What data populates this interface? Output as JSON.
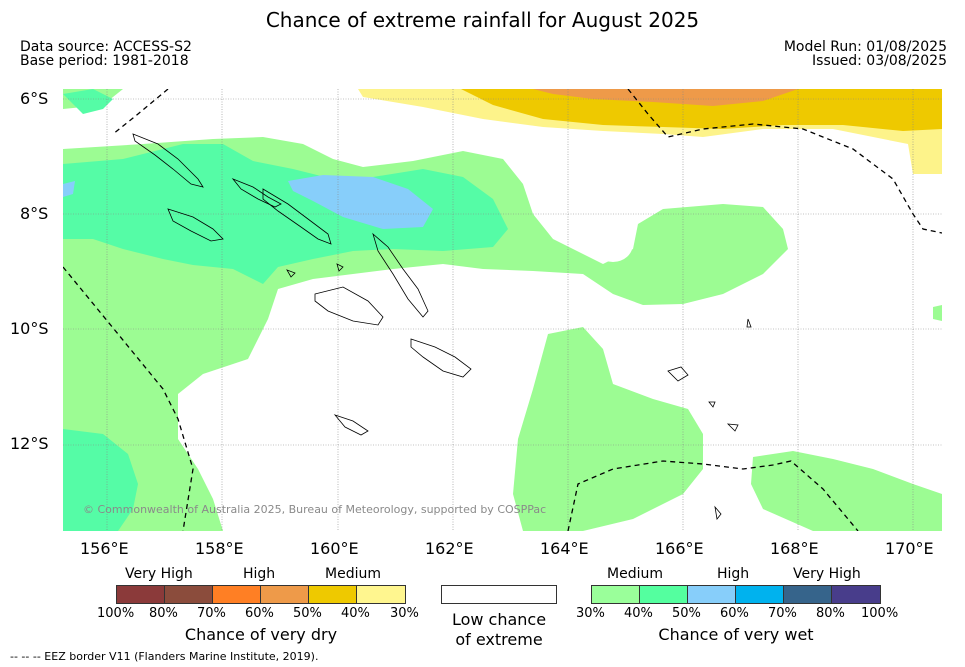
{
  "title": "Chance of extreme rainfall for August 2025",
  "meta": {
    "data_source": "Data source: ACCESS-S2",
    "base_period": "Base period: 1981-2018",
    "model_run": "Model Run: 01/08/2025",
    "issued": "Issued: 03/08/2025"
  },
  "map": {
    "lat_labels": [
      "6°S",
      "8°S",
      "10°S",
      "12°S"
    ],
    "lon_labels": [
      "156°E",
      "158°E",
      "160°E",
      "162°E",
      "164°E",
      "166°E",
      "168°E",
      "170°E"
    ],
    "copyright": "© Commonwealth of Australia 2025, Bureau of Meteorology, supported by COSPPac",
    "colors": {
      "wet_medium": "#9cfc93",
      "wet_high": "#55fca6",
      "wet_very_high": "#87cefa",
      "dry_medium": "#eec900",
      "dry_high": "#ee9a49",
      "dry_low": "#fdf38a",
      "land_outline": "#000000"
    }
  },
  "legend_dry": {
    "headers": [
      "Very High",
      "High",
      "Medium"
    ],
    "ticks": [
      "100%",
      "80%",
      "70%",
      "60%",
      "50%",
      "40%",
      "30%"
    ],
    "colors": [
      "#8b3a3a",
      "#8b4c3c",
      "#ff7f24",
      "#ee9a49",
      "#eec900",
      "#fff68f"
    ],
    "title": "Chance of very dry"
  },
  "legend_low": {
    "line1": "Low chance",
    "line2": "of extreme",
    "color": "#ffffff"
  },
  "legend_wet": {
    "headers": [
      "Medium",
      "High",
      "Very High"
    ],
    "ticks": [
      "30%",
      "40%",
      "50%",
      "60%",
      "70%",
      "80%",
      "100%"
    ],
    "colors": [
      "#9aff9a",
      "#54ff9f",
      "#87cefa",
      "#00b2ee",
      "#36648b",
      "#483d8b"
    ],
    "title": "Chance of very wet"
  },
  "eez_note": "--  --  -- EEZ border V11 (Flanders Marine Institute, 2019)."
}
